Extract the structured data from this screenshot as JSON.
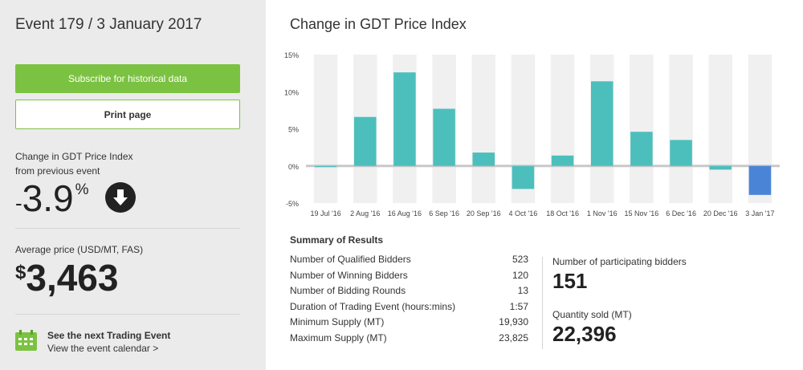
{
  "sidebar": {
    "event_title": "Event 179 / 3 January 2017",
    "subscribe_label": "Subscribe for historical data",
    "print_label": "Print page",
    "change_label_line1": "Change in GDT Price Index",
    "change_label_line2": "from previous event",
    "change_sign": "-",
    "change_value": "3.9",
    "change_unit": "%",
    "avg_label": "Average price (USD/MT, FAS)",
    "avg_currency": "$",
    "avg_value": "3,463",
    "next_title": "See the next Trading Event",
    "next_link": "View the event calendar >"
  },
  "main": {
    "chart_title": "Change in GDT Price Index",
    "summary_title": "Summary of Results",
    "summary_rows": [
      {
        "label": "Number of Qualified Bidders",
        "value": "523"
      },
      {
        "label": "Number of Winning Bidders",
        "value": "120"
      },
      {
        "label": "Number of Bidding Rounds",
        "value": "13"
      },
      {
        "label": "Duration of Trading Event (hours:mins)",
        "value": "1:57"
      },
      {
        "label": "Minimum Supply (MT)",
        "value": "19,930"
      },
      {
        "label": "Maximum Supply (MT)",
        "value": "23,825"
      }
    ],
    "participating_label": "Number of participating bidders",
    "participating_value": "151",
    "quantity_label": "Quantity sold (MT)",
    "quantity_value": "22,396"
  },
  "colors": {
    "accent_green": "#7cc242",
    "bar_teal": "#4cbfbc",
    "bar_current": "#4a84d6",
    "stripe": "#f0f0f0"
  },
  "icons": {
    "change": "down-arrow-circle-icon",
    "calendar": "calendar-icon"
  },
  "chart_data": {
    "type": "bar",
    "title": "Change in GDT Price Index",
    "categories": [
      "19 Jul '16",
      "2 Aug '16",
      "16 Aug '16",
      "6 Sep '16",
      "20 Sep '16",
      "4 Oct '16",
      "18 Oct '16",
      "1 Nov '16",
      "15 Nov '16",
      "6 Dec '16",
      "20 Dec '16",
      "3 Jan '17"
    ],
    "values": [
      -0.1,
      6.6,
      12.6,
      7.7,
      1.8,
      -3.1,
      1.4,
      11.4,
      4.6,
      3.5,
      -0.5,
      -3.9
    ],
    "ylim": [
      -5,
      15
    ],
    "yticks": [
      "-5%",
      "0%",
      "5%",
      "10%",
      "15%"
    ],
    "grid": false,
    "highlight_last": true
  }
}
